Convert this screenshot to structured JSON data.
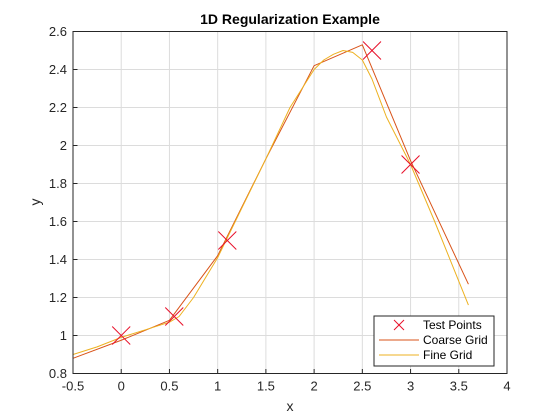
{
  "chart_data": {
    "type": "line",
    "title": "1D Regularization Example",
    "xlabel": "x",
    "ylabel": "y",
    "xlim": [
      -0.5,
      4
    ],
    "ylim": [
      0.8,
      2.6
    ],
    "xticks": [
      -0.5,
      0,
      0.5,
      1,
      1.5,
      2,
      2.5,
      3,
      3.5,
      4
    ],
    "yticks": [
      0.8,
      1,
      1.2,
      1.4,
      1.6,
      1.8,
      2,
      2.2,
      2.4,
      2.6
    ],
    "xtick_labels": [
      "-0.5",
      "0",
      "0.5",
      "1",
      "1.5",
      "2",
      "2.5",
      "3",
      "3.5",
      "4"
    ],
    "ytick_labels": [
      "0.8",
      "1",
      "1.2",
      "1.4",
      "1.6",
      "1.8",
      "2",
      "2.2",
      "2.4",
      "2.6"
    ],
    "grid": true,
    "legend_position": "bottom-right",
    "series": [
      {
        "name": "Test Points",
        "kind": "markers",
        "marker": "x",
        "color": "#e8102a",
        "x": [
          0,
          0.55,
          1.1,
          2.6,
          3.0
        ],
        "y": [
          1.0,
          1.1,
          1.5,
          2.5,
          1.9
        ]
      },
      {
        "name": "Coarse Grid",
        "kind": "line",
        "color": "#d95319",
        "x": [
          -0.5,
          0,
          0.5,
          1,
          1.5,
          2,
          2.5,
          3,
          3.6
        ],
        "y": [
          0.88,
          0.975,
          1.08,
          1.42,
          1.93,
          2.42,
          2.53,
          1.92,
          1.27
        ]
      },
      {
        "name": "Fine Grid",
        "kind": "line",
        "color": "#edb120",
        "x": [
          -0.5,
          -0.25,
          0,
          0.25,
          0.5,
          0.6,
          0.75,
          1,
          1.25,
          1.5,
          1.75,
          2,
          2.1,
          2.2,
          2.3,
          2.4,
          2.5,
          2.6,
          2.75,
          3,
          3.25,
          3.6
        ],
        "y": [
          0.9,
          0.94,
          0.99,
          1.03,
          1.07,
          1.1,
          1.2,
          1.41,
          1.67,
          1.93,
          2.2,
          2.4,
          2.45,
          2.48,
          2.5,
          2.49,
          2.45,
          2.35,
          2.15,
          1.9,
          1.6,
          1.16
        ]
      }
    ]
  }
}
